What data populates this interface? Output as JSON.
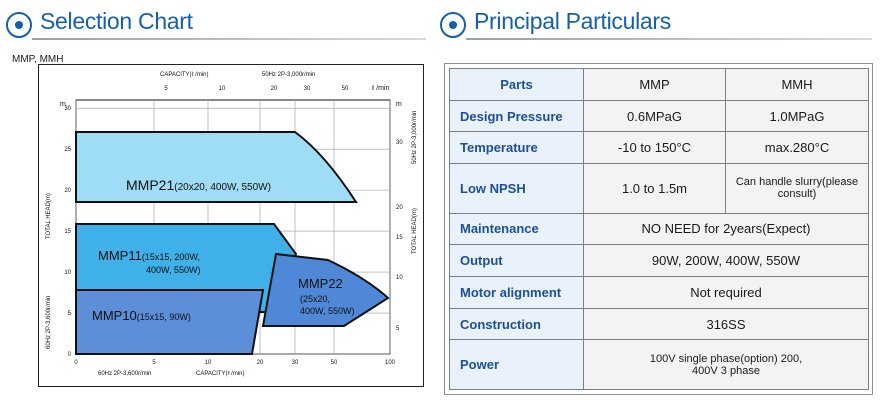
{
  "left_title": "Selection Chart",
  "right_title": "Principal Particulars",
  "model_label": "MMP, MMH",
  "chart_data": {
    "type": "area",
    "top_axis": {
      "title": "CAPACITY(ℓ /min)",
      "note": "50Hz 2P-3,000r/min",
      "ticks": [
        "5",
        "10",
        "20",
        "30",
        "50"
      ],
      "unit": "ℓ /min"
    },
    "bottom_axis": {
      "note": "60Hz 2P-3,600r/min",
      "title": "CAPACITY(ℓ /min)",
      "ticks": [
        "0",
        "5",
        "10",
        "20",
        "30",
        "50",
        "100"
      ]
    },
    "left_axis": {
      "unit": "m",
      "ticks": [
        "0",
        "5",
        "10",
        "15",
        "20",
        "25",
        "30"
      ],
      "title": "60Hz 2P-3,600r/min",
      "title2": "TOTAL HEAD(m)"
    },
    "right_axis": {
      "unit": "m",
      "ticks": [
        "5",
        "10",
        "15",
        "20",
        "30"
      ],
      "title": "50Hz 2P-3,000r/min",
      "title2": "TOTAL HEAD(m)"
    },
    "regions": [
      {
        "name": "MMP21",
        "label_main": "MMP21",
        "label_sub": "(20x20, 400W, 550W)",
        "head_range": [
          20,
          30
        ],
        "color": "#9fdcf6"
      },
      {
        "name": "MMP11",
        "label_main": "MMP11",
        "label_sub": "(15x15, 200W,",
        "label_sub2": "400W, 550W)",
        "head_range": [
          8,
          17
        ],
        "color": "#3fb0e8"
      },
      {
        "name": "MMP22",
        "label_main": "MMP22",
        "label_sub": "(25x20,",
        "label_sub2": "400W, 550W)",
        "color": "#4f88d6"
      },
      {
        "name": "MMP10",
        "label_main": "MMP10",
        "label_sub": "(15x15, 90W)",
        "head_range": [
          0,
          8
        ],
        "color": "#5c8fd8"
      }
    ]
  },
  "spec_table": {
    "headers": [
      "Parts",
      "MMP",
      "MMH"
    ],
    "rows": [
      {
        "label": "Design Pressure",
        "mmp": "0.6MPaG",
        "mmh": "1.0MPaG"
      },
      {
        "label": "Temperature",
        "mmp": "-10 to 150°C",
        "mmh": "max.280°C"
      },
      {
        "label": "Low NPSH",
        "mmp": "1.0 to 1.5m",
        "mmh": "Can handle slurry(please consult)"
      },
      {
        "label": "Maintenance",
        "both": "NO NEED for 2years(Expect)"
      },
      {
        "label": "Output",
        "both": "90W, 200W, 400W, 550W"
      },
      {
        "label": "Motor alignment",
        "both": "Not required"
      },
      {
        "label": "Construction",
        "both": "316SS"
      },
      {
        "label": "Power",
        "both": "100V single phase(option) 200, 400V 3 phase"
      }
    ]
  },
  "colors": {
    "accent": "#1560ad",
    "header_text": "#1d4f9b",
    "header_bg": "#e9f1fa",
    "cell_bg": "#f3f3f3"
  }
}
